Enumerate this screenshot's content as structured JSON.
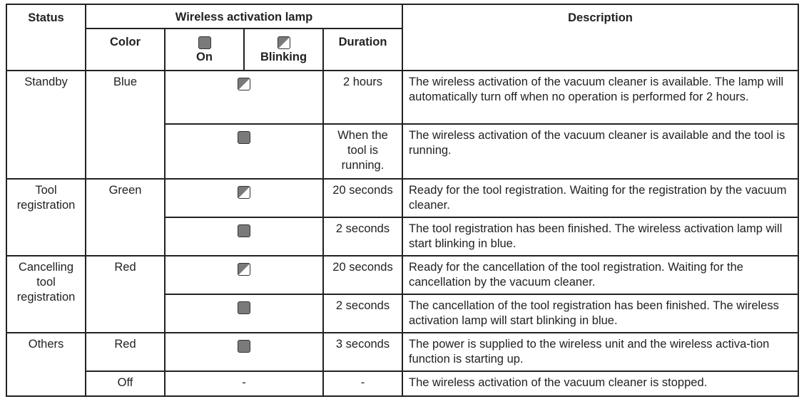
{
  "header": {
    "status": "Status",
    "lamp": "Wireless activation lamp",
    "description": "Description",
    "color": "Color",
    "on": "On",
    "blinking": "Blinking",
    "duration": "Duration",
    "icons": {
      "on": "lamp-on-icon",
      "blinking": "lamp-blinking-icon"
    }
  },
  "rows": [
    {
      "status": "Standby",
      "color": "Blue",
      "lamp": "blinking",
      "duration": "2 hours",
      "description": "The wireless activation of the vacuum cleaner is available. The lamp will automatically turn off when no operation is performed for 2 hours."
    },
    {
      "lamp": "on",
      "duration": "When the tool is running.",
      "description": "The wireless activation of the vacuum cleaner is available and the tool is running."
    },
    {
      "status": "Tool registration",
      "color": "Green",
      "lamp": "blinking",
      "duration": "20 seconds",
      "description": "Ready for the tool registration. Waiting for the registration by the vacuum cleaner."
    },
    {
      "lamp": "on",
      "duration": "2 seconds",
      "description": "The tool registration has been finished. The wireless activation lamp will start blinking in blue."
    },
    {
      "status": "Cancelling tool registration",
      "color": "Red",
      "lamp": "blinking",
      "duration": "20 seconds",
      "description": "Ready for the cancellation of the tool registration. Waiting for the cancellation by the vacuum cleaner."
    },
    {
      "lamp": "on",
      "duration": "2 seconds",
      "description": "The cancellation of the tool registration has been finished. The wireless activation lamp will start blinking in blue."
    },
    {
      "status": "Others",
      "color": "Red",
      "lamp": "on",
      "duration": "3 seconds",
      "description": "The power is supplied to the wireless unit and the wireless activa-tion function is starting up."
    },
    {
      "color": "Off",
      "lamp_text": "-",
      "duration": "-",
      "description": "The wireless activation of the vacuum cleaner is stopped."
    }
  ]
}
